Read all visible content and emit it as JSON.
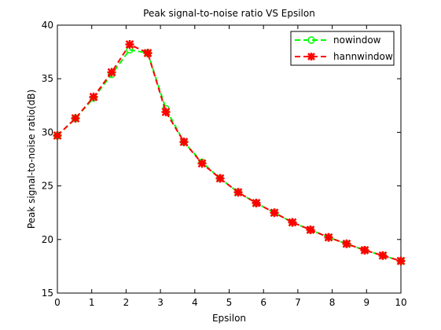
{
  "chart_data": {
    "type": "line",
    "title": "Peak signal-to-noise ratio VS Epsilon",
    "xlabel": "Epsilon",
    "ylabel": "Peak signal-to-noise ratio(dB)",
    "xlim": [
      0,
      10
    ],
    "ylim": [
      15,
      40
    ],
    "xticks": [
      0,
      1,
      2,
      3,
      4,
      5,
      6,
      7,
      8,
      9,
      10
    ],
    "yticks": [
      15,
      20,
      25,
      30,
      35,
      40
    ],
    "grid": false,
    "legend_position": "top-right",
    "series": [
      {
        "name": "nowindow",
        "color": "#00ff00",
        "marker": "circle",
        "line_style": "dashed",
        "x": [
          0,
          0.526,
          1.053,
          1.579,
          2.105,
          2.632,
          3.158,
          3.684,
          4.211,
          4.737,
          5.263,
          5.789,
          6.316,
          6.842,
          7.368,
          7.895,
          8.421,
          8.947,
          9.474,
          10
        ],
        "y": [
          29.7,
          31.3,
          33.2,
          35.4,
          37.7,
          37.4,
          32.2,
          29.1,
          27.2,
          25.7,
          24.4,
          23.4,
          22.5,
          21.6,
          20.9,
          20.2,
          19.6,
          19.0,
          18.5,
          18.0
        ]
      },
      {
        "name": "hannwindow",
        "color": "#ff0000",
        "marker": "star",
        "line_style": "dashed",
        "x": [
          0,
          0.526,
          1.053,
          1.579,
          2.105,
          2.632,
          3.158,
          3.684,
          4.211,
          4.737,
          5.263,
          5.789,
          6.316,
          6.842,
          7.368,
          7.895,
          8.421,
          8.947,
          9.474,
          10
        ],
        "y": [
          29.7,
          31.3,
          33.3,
          35.6,
          38.2,
          37.4,
          31.9,
          29.1,
          27.1,
          25.7,
          24.4,
          23.4,
          22.5,
          21.6,
          20.9,
          20.2,
          19.6,
          19.0,
          18.5,
          18.0
        ]
      }
    ]
  }
}
